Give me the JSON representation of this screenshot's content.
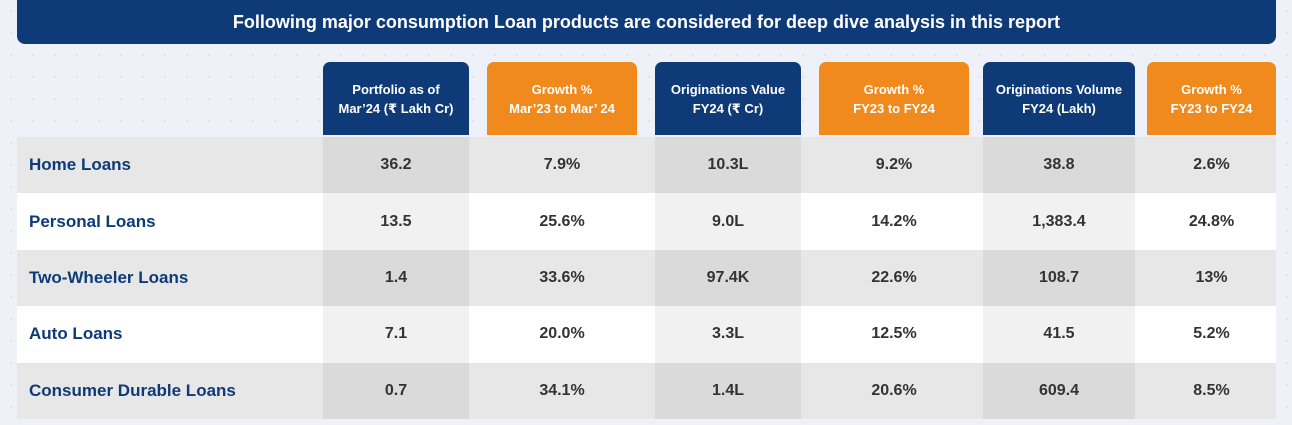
{
  "banner": {
    "title": "Following major consumption Loan products are considered for deep dive analysis in this report"
  },
  "columns": [
    {
      "line1": "Portfolio as of",
      "line2": "Mar’24 (₹ Lakh Cr)",
      "color": "#0e3a78"
    },
    {
      "line1": "Growth %",
      "line2": "Mar’23 to Mar’ 24",
      "color": "#f08a1c"
    },
    {
      "line1": "Originations Value",
      "line2": "FY24 (₹ Cr)",
      "color": "#0e3a78"
    },
    {
      "line1": "Growth %",
      "line2": "FY23 to FY24",
      "color": "#f08a1c"
    },
    {
      "line1": "Originations Volume",
      "line2": "FY24 (Lakh)",
      "color": "#0e3a78"
    },
    {
      "line1": "Growth %",
      "line2": "FY23 to FY24",
      "color": "#f08a1c"
    }
  ],
  "rows": [
    {
      "label": "Home Loans",
      "values": [
        "36.2",
        "7.9%",
        "10.3L",
        "9.2%",
        "38.8",
        "2.6%"
      ]
    },
    {
      "label": "Personal Loans",
      "values": [
        "13.5",
        "25.6%",
        "9.0L",
        "14.2%",
        "1,383.4",
        "24.8%"
      ]
    },
    {
      "label": "Two-Wheeler Loans",
      "values": [
        "1.4",
        "33.6%",
        "97.4K",
        "22.6%",
        "108.7",
        "13%"
      ]
    },
    {
      "label": "Auto Loans",
      "values": [
        "7.1",
        "20.0%",
        "3.3L",
        "12.5%",
        "41.5",
        "5.2%"
      ]
    },
    {
      "label": "Consumer Durable Loans",
      "values": [
        "0.7",
        "34.1%",
        "1.4L",
        "20.6%",
        "609.4",
        "8.5%"
      ]
    }
  ]
}
